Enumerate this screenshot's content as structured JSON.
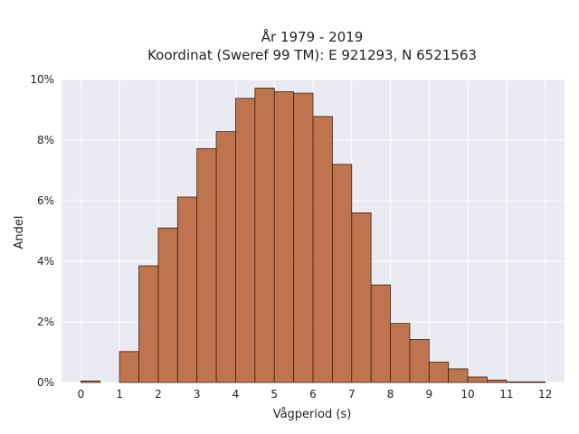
{
  "chart_data": {
    "type": "bar",
    "title_line1": "År 1979 - 2019",
    "title_line2": "Koordinat (Sweref 99 TM): E 921293, N 6521563",
    "xlabel": "Vågperiod (s)",
    "ylabel": "Andel",
    "xlim": [
      -0.5,
      12.5
    ],
    "ylim": [
      0,
      10
    ],
    "x_ticks": [
      0,
      1,
      2,
      3,
      4,
      5,
      6,
      7,
      8,
      9,
      10,
      11,
      12
    ],
    "y_ticks": [
      0,
      2,
      4,
      6,
      8,
      10
    ],
    "y_tick_labels": [
      "0%",
      "2%",
      "4%",
      "6%",
      "8%",
      "10%"
    ],
    "bin_width": 0.5,
    "bins": [
      {
        "x0": 0.0,
        "value": 0.05
      },
      {
        "x0": 1.0,
        "value": 1.02
      },
      {
        "x0": 1.5,
        "value": 3.85
      },
      {
        "x0": 2.0,
        "value": 5.1
      },
      {
        "x0": 2.5,
        "value": 6.12
      },
      {
        "x0": 3.0,
        "value": 7.72
      },
      {
        "x0": 3.5,
        "value": 8.28
      },
      {
        "x0": 4.0,
        "value": 9.38
      },
      {
        "x0": 4.5,
        "value": 9.72
      },
      {
        "x0": 5.0,
        "value": 9.6
      },
      {
        "x0": 5.5,
        "value": 9.55
      },
      {
        "x0": 6.0,
        "value": 8.78
      },
      {
        "x0": 6.5,
        "value": 7.2
      },
      {
        "x0": 7.0,
        "value": 5.6
      },
      {
        "x0": 7.5,
        "value": 3.22
      },
      {
        "x0": 8.0,
        "value": 1.95
      },
      {
        "x0": 8.5,
        "value": 1.42
      },
      {
        "x0": 9.0,
        "value": 0.67
      },
      {
        "x0": 9.5,
        "value": 0.45
      },
      {
        "x0": 10.0,
        "value": 0.18
      },
      {
        "x0": 10.5,
        "value": 0.08
      },
      {
        "x0": 11.0,
        "value": 0.02
      },
      {
        "x0": 11.5,
        "value": 0.02
      }
    ],
    "grid": true,
    "colors": {
      "bar": "#b9673b",
      "edge": "#3a2418",
      "background": "#eaeaf2"
    }
  }
}
